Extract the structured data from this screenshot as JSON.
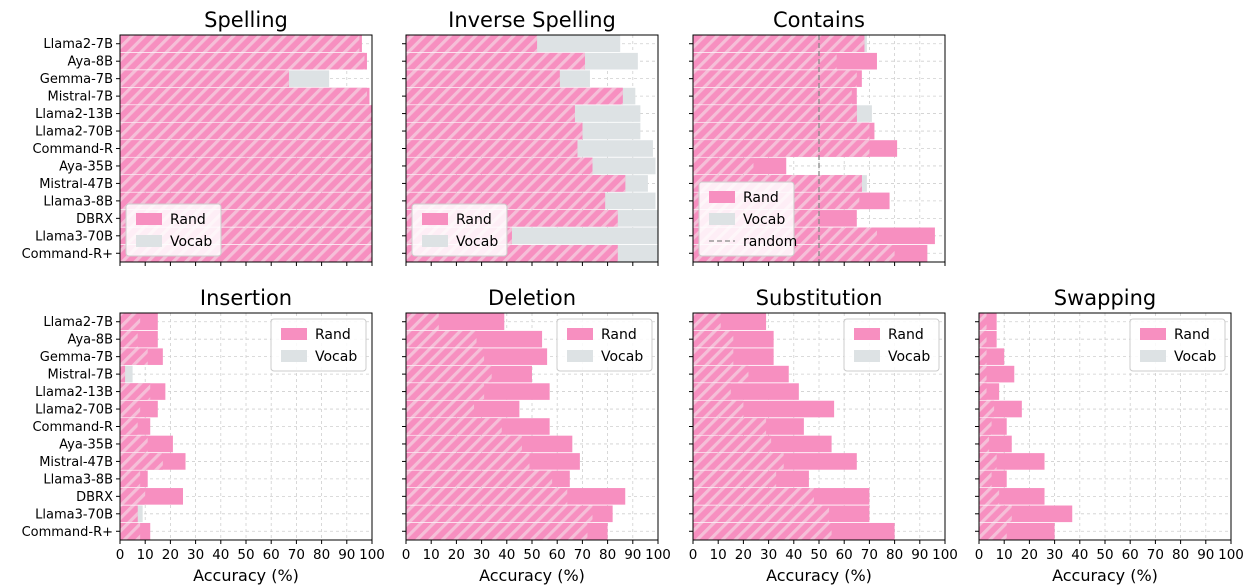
{
  "colors": {
    "rand": "#f78fc0",
    "vocab": "#dde2e4",
    "hatch_light": "#f5bfd8",
    "random_line": "#888888"
  },
  "models": [
    "Llama2-7B",
    "Aya-8B",
    "Gemma-7B",
    "Mistral-7B",
    "Llama2-13B",
    "Llama2-70B",
    "Command-R",
    "Aya-35B",
    "Mistral-47B",
    "Llama3-8B",
    "DBRX",
    "Llama3-70B",
    "Command-R+"
  ],
  "x_ticks": [
    "0",
    "10",
    "20",
    "30",
    "40",
    "50",
    "60",
    "70",
    "80",
    "90",
    "100"
  ],
  "chart_data": [
    {
      "type": "bar",
      "orientation": "horizontal",
      "title": "Spelling",
      "xlabel": "",
      "xlim": [
        0,
        100
      ],
      "legend": [
        "Rand",
        "Vocab"
      ],
      "legend_position": "lower-left",
      "series": [
        {
          "name": "Vocab",
          "values": [
            95,
            97,
            83,
            98,
            100,
            100,
            100,
            100,
            100,
            100,
            100,
            100,
            100
          ]
        },
        {
          "name": "Rand",
          "values": [
            96,
            98,
            67,
            99,
            100,
            100,
            100,
            100,
            100,
            100,
            100,
            100,
            100
          ]
        }
      ]
    },
    {
      "type": "bar",
      "orientation": "horizontal",
      "title": "Inverse Spelling",
      "xlabel": "",
      "xlim": [
        0,
        100
      ],
      "legend": [
        "Rand",
        "Vocab"
      ],
      "legend_position": "lower-left",
      "series": [
        {
          "name": "Vocab",
          "values": [
            85,
            92,
            73,
            91,
            93,
            93,
            98,
            99,
            96,
            99,
            100,
            100,
            100
          ]
        },
        {
          "name": "Rand",
          "values": [
            52,
            71,
            61,
            86,
            67,
            70,
            68,
            74,
            87,
            79,
            84,
            42,
            84
          ]
        }
      ]
    },
    {
      "type": "bar",
      "orientation": "horizontal",
      "title": "Contains",
      "xlabel": "",
      "xlim": [
        0,
        100
      ],
      "legend": [
        "Rand",
        "Vocab",
        "random"
      ],
      "legend_position": "lower-left",
      "reference_line": 50,
      "series": [
        {
          "name": "Vocab",
          "values": [
            69,
            57,
            65,
            63,
            71,
            70,
            70,
            24,
            69,
            66,
            50,
            73,
            80
          ]
        },
        {
          "name": "Rand",
          "values": [
            68,
            73,
            67,
            65,
            65,
            72,
            81,
            37,
            67,
            78,
            65,
            96,
            93
          ]
        }
      ]
    },
    {
      "type": "bar",
      "orientation": "horizontal",
      "title": "Insertion",
      "xlabel": "Accuracy (%)",
      "xlim": [
        0,
        100
      ],
      "legend": [
        "Rand",
        "Vocab"
      ],
      "legend_position": "top-right",
      "series": [
        {
          "name": "Vocab",
          "values": [
            8,
            7,
            11,
            5,
            12,
            8,
            7,
            11,
            17,
            8,
            10,
            9,
            8
          ]
        },
        {
          "name": "Rand",
          "values": [
            15,
            15,
            17,
            2,
            18,
            15,
            12,
            21,
            26,
            11,
            25,
            7,
            12
          ]
        }
      ]
    },
    {
      "type": "bar",
      "orientation": "horizontal",
      "title": "Deletion",
      "xlabel": "Accuracy (%)",
      "xlim": [
        0,
        100
      ],
      "legend": [
        "Rand",
        "Vocab"
      ],
      "legend_position": "top-right",
      "series": [
        {
          "name": "Vocab",
          "values": [
            13,
            28,
            31,
            34,
            31,
            27,
            38,
            46,
            49,
            58,
            64,
            74,
            72
          ]
        },
        {
          "name": "Rand",
          "values": [
            39,
            54,
            56,
            50,
            57,
            45,
            57,
            66,
            69,
            65,
            87,
            82,
            80
          ]
        }
      ]
    },
    {
      "type": "bar",
      "orientation": "horizontal",
      "title": "Substitution",
      "xlabel": "Accuracy (%)",
      "xlim": [
        0,
        100
      ],
      "legend": [
        "Rand",
        "Vocab"
      ],
      "legend_position": "top-right",
      "series": [
        {
          "name": "Vocab",
          "values": [
            11,
            16,
            16,
            22,
            15,
            20,
            29,
            31,
            36,
            33,
            48,
            54,
            55
          ]
        },
        {
          "name": "Rand",
          "values": [
            29,
            32,
            32,
            38,
            42,
            56,
            44,
            55,
            65,
            46,
            70,
            70,
            80
          ]
        }
      ]
    },
    {
      "type": "bar",
      "orientation": "horizontal",
      "title": "Swapping",
      "xlabel": "Accuracy (%)",
      "xlim": [
        0,
        100
      ],
      "legend": [
        "Rand",
        "Vocab"
      ],
      "legend_position": "top-right",
      "series": [
        {
          "name": "Vocab",
          "values": [
            3,
            3,
            3,
            3,
            3,
            6,
            5,
            4,
            7,
            5,
            8,
            13,
            11
          ]
        },
        {
          "name": "Rand",
          "values": [
            7,
            7,
            10,
            14,
            8,
            17,
            11,
            13,
            26,
            11,
            26,
            37,
            30
          ]
        }
      ]
    }
  ]
}
